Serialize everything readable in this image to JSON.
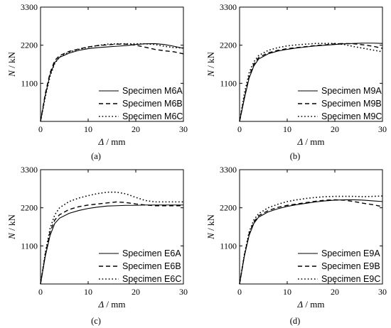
{
  "chart_data": [
    {
      "type": "line",
      "panel_label": "(a)",
      "xlabel_symbol": "Δ",
      "xlabel_unit": " / mm",
      "ylabel_symbol": "N",
      "ylabel_unit": " / kN",
      "xlim": [
        0,
        30
      ],
      "ylim": [
        0,
        3300
      ],
      "xticks": [
        "0",
        "10",
        "20",
        "30"
      ],
      "yticks": [
        "1100",
        "2200",
        "3300"
      ],
      "legend_position": "bottom-right",
      "series": [
        {
          "name": "Specimen M6A",
          "style": "solid",
          "x": [
            0,
            1,
            2,
            3,
            4,
            6,
            8,
            10,
            12,
            14,
            16,
            18,
            20,
            22,
            24,
            26,
            28,
            30
          ],
          "y": [
            0,
            750,
            1350,
            1700,
            1850,
            1970,
            2050,
            2100,
            2130,
            2150,
            2170,
            2190,
            2220,
            2240,
            2245,
            2220,
            2170,
            2110
          ]
        },
        {
          "name": "Specimen M6B",
          "style": "dashed",
          "x": [
            0,
            1,
            2,
            3,
            4,
            6,
            8,
            10,
            12,
            14,
            16,
            18,
            20,
            22,
            24,
            26,
            28,
            30
          ],
          "y": [
            0,
            800,
            1400,
            1760,
            1900,
            2020,
            2090,
            2150,
            2190,
            2210,
            2230,
            2230,
            2200,
            2140,
            2080,
            2040,
            2010,
            1950
          ]
        },
        {
          "name": "Specimen M6C",
          "style": "dotted",
          "x": [
            0,
            1,
            2,
            3,
            4,
            6,
            8,
            10,
            12,
            14,
            16,
            18,
            20,
            22,
            24,
            26,
            28,
            30
          ],
          "y": [
            0,
            700,
            1300,
            1680,
            1860,
            2000,
            2080,
            2140,
            2190,
            2230,
            2240,
            2240,
            2240,
            2240,
            2220,
            2170,
            2130,
            2120
          ]
        }
      ]
    },
    {
      "type": "line",
      "panel_label": "(b)",
      "xlabel_symbol": "Δ",
      "xlabel_unit": " / mm",
      "ylabel_symbol": "N",
      "ylabel_unit": " / kN",
      "xlim": [
        0,
        30
      ],
      "ylim": [
        0,
        3300
      ],
      "xticks": [
        "0",
        "10",
        "20",
        "30"
      ],
      "yticks": [
        "1100",
        "2200",
        "3300"
      ],
      "legend_position": "bottom-right",
      "series": [
        {
          "name": "Specimen M9A",
          "style": "solid",
          "x": [
            0,
            1,
            2,
            3,
            4,
            6,
            8,
            10,
            12,
            14,
            16,
            18,
            20,
            22,
            24,
            26,
            28,
            30
          ],
          "y": [
            0,
            650,
            1250,
            1600,
            1800,
            1950,
            2030,
            2080,
            2120,
            2150,
            2180,
            2200,
            2220,
            2240,
            2250,
            2260,
            2260,
            2250
          ]
        },
        {
          "name": "Specimen M9B",
          "style": "dashed",
          "x": [
            0,
            1,
            2,
            3,
            4,
            6,
            8,
            10,
            12,
            14,
            16,
            18,
            20,
            22,
            24,
            26,
            28,
            30
          ],
          "y": [
            0,
            700,
            1300,
            1650,
            1840,
            1980,
            2050,
            2100,
            2130,
            2160,
            2190,
            2210,
            2240,
            2250,
            2240,
            2210,
            2170,
            2110
          ]
        },
        {
          "name": "Specimen M9C",
          "style": "dotted",
          "x": [
            0,
            1,
            2,
            3,
            4,
            6,
            8,
            10,
            12,
            14,
            16,
            18,
            20,
            22,
            24,
            26,
            28,
            30
          ],
          "y": [
            0,
            800,
            1400,
            1720,
            1900,
            2050,
            2130,
            2180,
            2210,
            2230,
            2250,
            2250,
            2250,
            2220,
            2160,
            2110,
            2060,
            2010
          ]
        }
      ]
    },
    {
      "type": "line",
      "panel_label": "(c)",
      "xlabel_symbol": "Δ",
      "xlabel_unit": " / mm",
      "ylabel_symbol": "N",
      "ylabel_unit": " / kN",
      "xlim": [
        0,
        30
      ],
      "ylim": [
        0,
        3300
      ],
      "xticks": [
        "0",
        "10",
        "20",
        "30"
      ],
      "yticks": [
        "1100",
        "2200",
        "3300"
      ],
      "legend_position": "bottom-right",
      "series": [
        {
          "name": "Specimen E6A",
          "style": "solid",
          "x": [
            0,
            1,
            2,
            3,
            4,
            6,
            8,
            10,
            12,
            14,
            16,
            18,
            20,
            22,
            24,
            26,
            28,
            30
          ],
          "y": [
            0,
            800,
            1400,
            1750,
            1900,
            2040,
            2120,
            2180,
            2220,
            2250,
            2260,
            2270,
            2270,
            2280,
            2280,
            2280,
            2280,
            2280
          ]
        },
        {
          "name": "Specimen E6B",
          "style": "dashed",
          "x": [
            0,
            1,
            2,
            3,
            4,
            6,
            8,
            10,
            12,
            14,
            16,
            18,
            20,
            22,
            24,
            26,
            28,
            30
          ],
          "y": [
            0,
            850,
            1500,
            1850,
            2000,
            2150,
            2230,
            2280,
            2310,
            2340,
            2370,
            2350,
            2310,
            2280,
            2260,
            2260,
            2260,
            2260
          ]
        },
        {
          "name": "Specimen E6C",
          "style": "dotted",
          "x": [
            0,
            1,
            2,
            3,
            4,
            6,
            8,
            10,
            12,
            14,
            16,
            18,
            20,
            22,
            24,
            26,
            28,
            30
          ],
          "y": [
            0,
            900,
            1600,
            2000,
            2200,
            2380,
            2480,
            2550,
            2610,
            2650,
            2650,
            2600,
            2500,
            2410,
            2370,
            2370,
            2370,
            2370
          ]
        }
      ]
    },
    {
      "type": "line",
      "panel_label": "(d)",
      "xlabel_symbol": "Δ",
      "xlabel_unit": " / mm",
      "ylabel_symbol": "N",
      "ylabel_unit": " / kN",
      "xlim": [
        0,
        30
      ],
      "ylim": [
        0,
        3300
      ],
      "xticks": [
        "0",
        "10",
        "20",
        "30"
      ],
      "yticks": [
        "1100",
        "2200",
        "3300"
      ],
      "legend_position": "bottom-right",
      "series": [
        {
          "name": "Specimen E9A",
          "style": "solid",
          "x": [
            0,
            1,
            2,
            3,
            4,
            6,
            8,
            10,
            12,
            14,
            16,
            18,
            20,
            22,
            24,
            26,
            28,
            30
          ],
          "y": [
            0,
            800,
            1400,
            1750,
            1930,
            2080,
            2170,
            2240,
            2290,
            2330,
            2370,
            2400,
            2420,
            2430,
            2430,
            2420,
            2400,
            2380
          ]
        },
        {
          "name": "Specimen E9B",
          "style": "dashed",
          "x": [
            0,
            1,
            2,
            3,
            4,
            6,
            8,
            10,
            12,
            14,
            16,
            18,
            20,
            22,
            24,
            26,
            28,
            30
          ],
          "y": [
            0,
            820,
            1450,
            1790,
            1970,
            2120,
            2210,
            2270,
            2310,
            2350,
            2390,
            2420,
            2430,
            2420,
            2380,
            2330,
            2290,
            2230
          ]
        },
        {
          "name": "Specimen E9C",
          "style": "dotted",
          "x": [
            0,
            1,
            2,
            3,
            4,
            6,
            8,
            10,
            12,
            14,
            16,
            18,
            20,
            22,
            24,
            26,
            28,
            30
          ],
          "y": [
            0,
            850,
            1500,
            1850,
            2030,
            2200,
            2300,
            2380,
            2430,
            2470,
            2500,
            2520,
            2530,
            2530,
            2530,
            2520,
            2530,
            2540
          ]
        }
      ]
    }
  ]
}
